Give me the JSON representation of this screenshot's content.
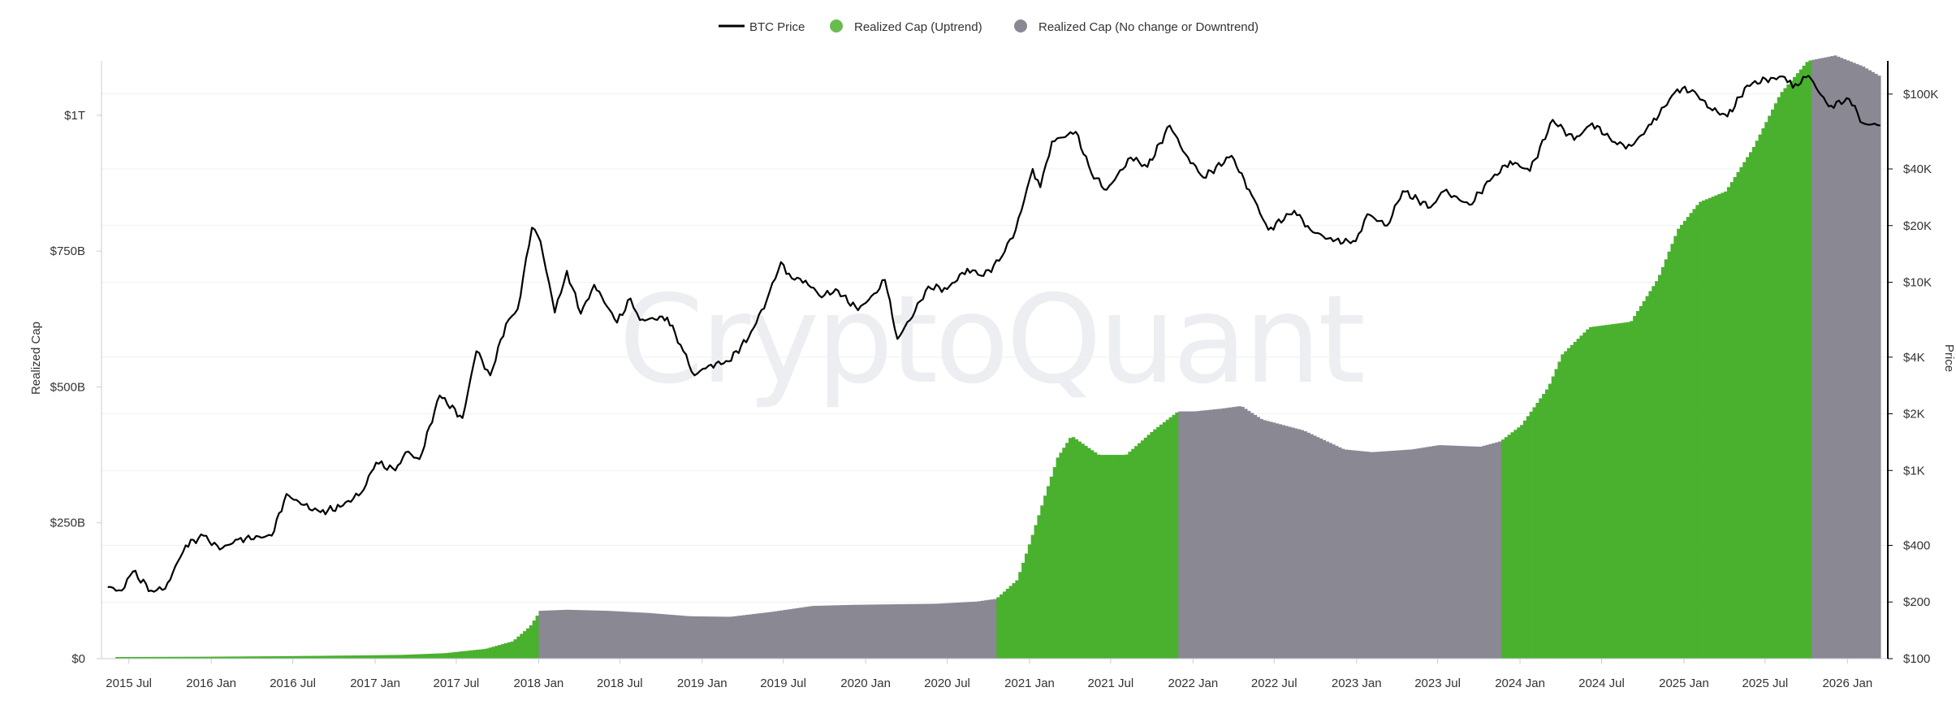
{
  "watermark": "CryptoQuant",
  "chart_data": {
    "type": "bar+line",
    "legend": [
      {
        "key": "price",
        "label": "BTC Price",
        "marker": "line",
        "color": "#000000"
      },
      {
        "key": "up",
        "label": "Realized Cap (Uptrend)",
        "marker": "dot",
        "color": "#6abb4f"
      },
      {
        "key": "down",
        "label": "Realized Cap (No change or Downtrend)",
        "marker": "dot",
        "color": "#8a8893"
      }
    ],
    "legend_position": "top-center",
    "grid": "horizontal",
    "colors": {
      "uptrend_bar": "#49b12e",
      "downtrend_bar": "#8a8893",
      "price_line": "#000000"
    },
    "x_ticks": [
      "2015 Jul",
      "2016 Jan",
      "2016 Jul",
      "2017 Jan",
      "2017 Jul",
      "2018 Jan",
      "2018 Jul",
      "2019 Jan",
      "2019 Jul",
      "2020 Jan",
      "2020 Jul",
      "2021 Jan",
      "2021 Jul",
      "2022 Jan",
      "2022 Jul",
      "2023 Jan",
      "2023 Jul",
      "2024 Jan",
      "2024 Jul",
      "2025 Jan",
      "2025 Jul",
      "2026 Jan"
    ],
    "x_range": [
      "2015-05",
      "2026-04"
    ],
    "left_axis": {
      "label": "Realized Cap",
      "ticks": [
        "$0",
        "$250B",
        "$500B",
        "$750B",
        "$1T"
      ],
      "tick_values": [
        0,
        250,
        500,
        750,
        1000
      ],
      "unit": "billion USD",
      "range": [
        0,
        1100
      ]
    },
    "right_axis": {
      "label": "Price",
      "scale": "log",
      "ticks": [
        "$100",
        "$200",
        "$400",
        "$1K",
        "$2K",
        "$4K",
        "$10K",
        "$20K",
        "$40K",
        "$100K"
      ],
      "tick_values": [
        100,
        200,
        400,
        1000,
        2000,
        4000,
        10000,
        20000,
        40000,
        100000
      ],
      "range": [
        100,
        150000
      ]
    },
    "realized_cap": {
      "unit": "billion USD",
      "points": [
        [
          "2015-06-01",
          3
        ],
        [
          "2015-12-01",
          3.5
        ],
        [
          "2016-06-01",
          4.5
        ],
        [
          "2016-12-01",
          6
        ],
        [
          "2017-03-01",
          7
        ],
        [
          "2017-06-01",
          10
        ],
        [
          "2017-09-01",
          18
        ],
        [
          "2017-11-01",
          32
        ],
        [
          "2017-12-10",
          60
        ],
        [
          "2018-01-01",
          88
        ],
        [
          "2018-03-01",
          90
        ],
        [
          "2018-06-01",
          88
        ],
        [
          "2018-09-01",
          84
        ],
        [
          "2018-12-01",
          78
        ],
        [
          "2019-03-01",
          77
        ],
        [
          "2019-06-01",
          86
        ],
        [
          "2019-09-01",
          97
        ],
        [
          "2019-12-01",
          99
        ],
        [
          "2020-03-01",
          100
        ],
        [
          "2020-06-01",
          101
        ],
        [
          "2020-09-01",
          105
        ],
        [
          "2020-10-15",
          110
        ],
        [
          "2020-12-01",
          145
        ],
        [
          "2021-01-01",
          220
        ],
        [
          "2021-02-01",
          300
        ],
        [
          "2021-03-01",
          370
        ],
        [
          "2021-04-01",
          410
        ],
        [
          "2021-06-01",
          375
        ],
        [
          "2021-08-01",
          375
        ],
        [
          "2021-10-01",
          420
        ],
        [
          "2021-11-25",
          455
        ],
        [
          "2022-01-01",
          455
        ],
        [
          "2022-03-01",
          460
        ],
        [
          "2022-04-15",
          465
        ],
        [
          "2022-06-01",
          440
        ],
        [
          "2022-09-01",
          420
        ],
        [
          "2022-12-01",
          385
        ],
        [
          "2023-02-01",
          380
        ],
        [
          "2023-05-01",
          385
        ],
        [
          "2023-07-01",
          393
        ],
        [
          "2023-10-01",
          390
        ],
        [
          "2023-11-15",
          400
        ],
        [
          "2024-01-01",
          430
        ],
        [
          "2024-03-01",
          500
        ],
        [
          "2024-04-01",
          560
        ],
        [
          "2024-06-01",
          610
        ],
        [
          "2024-09-01",
          620
        ],
        [
          "2024-11-01",
          700
        ],
        [
          "2024-12-15",
          790
        ],
        [
          "2025-02-01",
          840
        ],
        [
          "2025-04-01",
          860
        ],
        [
          "2025-06-01",
          940
        ],
        [
          "2025-08-01",
          1040
        ],
        [
          "2025-10-01",
          1100
        ],
        [
          "2025-12-01",
          1110
        ],
        [
          "2026-02-01",
          1090
        ],
        [
          "2026-03-15",
          1070
        ]
      ],
      "trend_segments": [
        {
          "start": "2015-05-15",
          "end": "2017-12-31",
          "trend": "up"
        },
        {
          "start": "2018-01-01",
          "end": "2020-10-14",
          "trend": "down"
        },
        {
          "start": "2020-10-15",
          "end": "2021-11-24",
          "trend": "up"
        },
        {
          "start": "2021-11-25",
          "end": "2023-11-14",
          "trend": "down"
        },
        {
          "start": "2023-11-15",
          "end": "2025-10-09",
          "trend": "up"
        },
        {
          "start": "2025-10-10",
          "end": "2026-03-15",
          "trend": "down"
        }
      ]
    },
    "btc_price": {
      "unit": "USD",
      "points": [
        [
          "2015-05-15",
          240
        ],
        [
          "2015-06-15",
          230
        ],
        [
          "2015-07-10",
          290
        ],
        [
          "2015-08-20",
          230
        ],
        [
          "2015-09-20",
          235
        ],
        [
          "2015-11-05",
          400
        ],
        [
          "2015-12-15",
          450
        ],
        [
          "2016-01-20",
          380
        ],
        [
          "2016-03-01",
          430
        ],
        [
          "2016-05-15",
          450
        ],
        [
          "2016-06-17",
          750
        ],
        [
          "2016-07-20",
          660
        ],
        [
          "2016-09-01",
          600
        ],
        [
          "2016-10-15",
          640
        ],
        [
          "2016-12-01",
          760
        ],
        [
          "2017-01-03",
          1100
        ],
        [
          "2017-02-15",
          1000
        ],
        [
          "2017-03-10",
          1250
        ],
        [
          "2017-04-10",
          1150
        ],
        [
          "2017-05-25",
          2500
        ],
        [
          "2017-07-15",
          1900
        ],
        [
          "2017-08-15",
          4300
        ],
        [
          "2017-09-15",
          3200
        ],
        [
          "2017-10-20",
          6000
        ],
        [
          "2017-11-15",
          7200
        ],
        [
          "2017-12-17",
          19500
        ],
        [
          "2018-01-05",
          16500
        ],
        [
          "2018-02-06",
          6900
        ],
        [
          "2018-03-05",
          11500
        ],
        [
          "2018-04-05",
          6800
        ],
        [
          "2018-05-05",
          9700
        ],
        [
          "2018-06-25",
          6100
        ],
        [
          "2018-07-25",
          8200
        ],
        [
          "2018-08-15",
          6300
        ],
        [
          "2018-10-15",
          6500
        ],
        [
          "2018-11-20",
          4300
        ],
        [
          "2018-12-15",
          3200
        ],
        [
          "2019-01-15",
          3600
        ],
        [
          "2019-03-01",
          3800
        ],
        [
          "2019-04-15",
          5100
        ],
        [
          "2019-05-25",
          8000
        ],
        [
          "2019-06-26",
          12800
        ],
        [
          "2019-07-20",
          10500
        ],
        [
          "2019-08-20",
          10200
        ],
        [
          "2019-09-25",
          8300
        ],
        [
          "2019-10-26",
          9200
        ],
        [
          "2019-12-15",
          7100
        ],
        [
          "2020-01-20",
          8700
        ],
        [
          "2020-02-13",
          10300
        ],
        [
          "2020-03-12",
          5000
        ],
        [
          "2020-04-20",
          7000
        ],
        [
          "2020-05-20",
          9500
        ],
        [
          "2020-07-01",
          9200
        ],
        [
          "2020-08-15",
          11800
        ],
        [
          "2020-09-20",
          10800
        ],
        [
          "2020-10-25",
          13000
        ],
        [
          "2020-12-01",
          19000
        ],
        [
          "2021-01-08",
          40000
        ],
        [
          "2021-01-25",
          32000
        ],
        [
          "2021-02-20",
          56000
        ],
        [
          "2021-04-14",
          63000
        ],
        [
          "2021-05-19",
          38000
        ],
        [
          "2021-06-22",
          31000
        ],
        [
          "2021-08-15",
          46000
        ],
        [
          "2021-09-21",
          41000
        ],
        [
          "2021-11-10",
          68000
        ],
        [
          "2021-12-15",
          48000
        ],
        [
          "2022-01-24",
          36000
        ],
        [
          "2022-03-28",
          47000
        ],
        [
          "2022-05-12",
          29000
        ],
        [
          "2022-06-18",
          19000
        ],
        [
          "2022-08-15",
          24000
        ],
        [
          "2022-09-20",
          19000
        ],
        [
          "2022-11-10",
          16500
        ],
        [
          "2022-12-30",
          16500
        ],
        [
          "2023-01-25",
          23000
        ],
        [
          "2023-03-10",
          20000
        ],
        [
          "2023-04-14",
          30500
        ],
        [
          "2023-06-15",
          25000
        ],
        [
          "2023-07-15",
          30500
        ],
        [
          "2023-09-10",
          25800
        ],
        [
          "2023-10-25",
          34500
        ],
        [
          "2023-12-10",
          44000
        ],
        [
          "2024-01-23",
          39000
        ],
        [
          "2024-03-14",
          73000
        ],
        [
          "2024-05-01",
          57000
        ],
        [
          "2024-06-10",
          70000
        ],
        [
          "2024-08-05",
          54000
        ],
        [
          "2024-09-06",
          53000
        ],
        [
          "2024-10-20",
          69000
        ],
        [
          "2024-12-17",
          106000
        ],
        [
          "2025-01-20",
          105000
        ],
        [
          "2025-02-28",
          84000
        ],
        [
          "2025-04-08",
          76000
        ],
        [
          "2025-05-22",
          111000
        ],
        [
          "2025-07-14",
          122000
        ],
        [
          "2025-08-14",
          123000
        ],
        [
          "2025-09-01",
          108000
        ],
        [
          "2025-10-06",
          125000
        ],
        [
          "2025-11-20",
          86000
        ],
        [
          "2026-01-05",
          94000
        ],
        [
          "2026-02-05",
          70000
        ],
        [
          "2026-03-15",
          68000
        ]
      ]
    }
  }
}
